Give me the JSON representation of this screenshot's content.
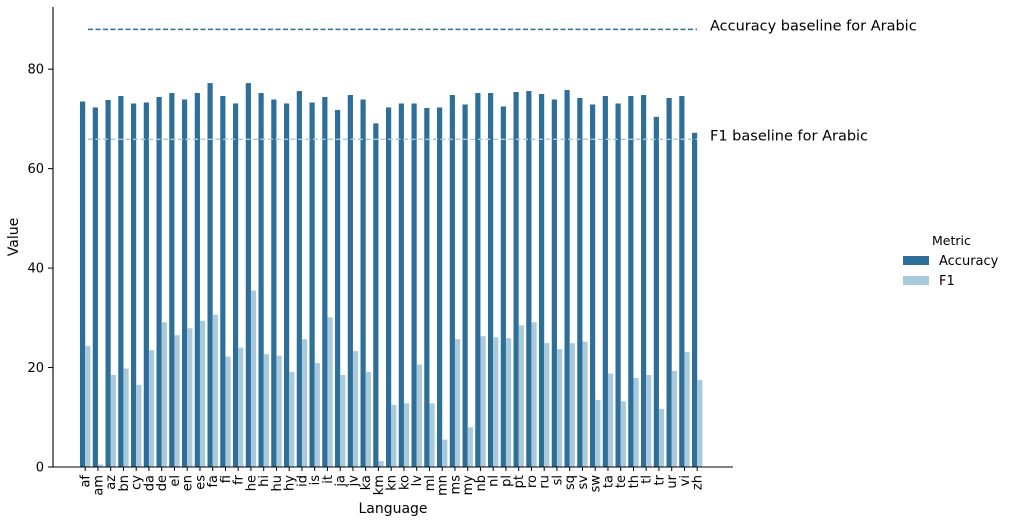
{
  "chart_data": {
    "type": "bar",
    "title": "",
    "xlabel": "Language",
    "ylabel": "Value",
    "ylim": [
      0,
      92.5
    ],
    "yticks": [
      0,
      20,
      40,
      60,
      80
    ],
    "grid": false,
    "legend": {
      "title": "Metric",
      "position": "right"
    },
    "categories": [
      "af",
      "am",
      "az",
      "bn",
      "cy",
      "da",
      "de",
      "el",
      "en",
      "es",
      "fa",
      "fi",
      "fr",
      "he",
      "hi",
      "hu",
      "hy",
      "id",
      "is",
      "it",
      "ja",
      "jv",
      "ka",
      "km",
      "kn",
      "ko",
      "lv",
      "ml",
      "mn",
      "ms",
      "my",
      "nb",
      "nl",
      "pl",
      "pt",
      "ro",
      "ru",
      "sl",
      "sq",
      "sv",
      "sw",
      "ta",
      "te",
      "th",
      "tl",
      "tr",
      "ur",
      "vi",
      "zh"
    ],
    "series": [
      {
        "name": "Accuracy",
        "color": "#2e6f9a",
        "values": [
          73.5,
          72.3,
          73.8,
          74.6,
          73.1,
          73.3,
          74.4,
          75.2,
          73.9,
          75.2,
          77.2,
          74.6,
          73.1,
          77.2,
          75.2,
          73.9,
          73.1,
          75.6,
          73.3,
          74.4,
          71.8,
          74.8,
          73.9,
          69.1,
          72.3,
          73.1,
          73.1,
          72.2,
          72.3,
          74.8,
          72.9,
          75.2,
          75.2,
          72.5,
          75.4,
          75.6,
          75.0,
          73.9,
          75.8,
          74.2,
          72.9,
          74.6,
          73.1,
          74.6,
          74.8,
          70.4,
          74.2,
          74.6,
          67.2
        ]
      },
      {
        "name": "F1",
        "color": "#a9c9dd",
        "values": [
          24.3,
          0.5,
          18.5,
          19.8,
          16.5,
          23.5,
          29.1,
          26.5,
          27.9,
          29.4,
          30.6,
          22.2,
          24.0,
          35.5,
          22.7,
          22.4,
          19.1,
          25.7,
          20.9,
          30.1,
          18.5,
          23.3,
          19.1,
          1.2,
          12.5,
          12.8,
          20.6,
          12.8,
          5.5,
          25.7,
          8.0,
          26.3,
          26.1,
          25.9,
          28.5,
          29.1,
          24.9,
          23.7,
          24.9,
          25.2,
          13.5,
          18.8,
          13.2,
          17.9,
          18.5,
          11.7,
          19.3,
          23.1,
          17.5
        ]
      }
    ],
    "reference_lines": [
      {
        "value": 88.0,
        "label": "Accuracy baseline for Arabic",
        "color": "#2e6f9a"
      },
      {
        "value": 65.9,
        "label": "F1 baseline for Arabic",
        "color": "#a9c9dd"
      }
    ]
  }
}
